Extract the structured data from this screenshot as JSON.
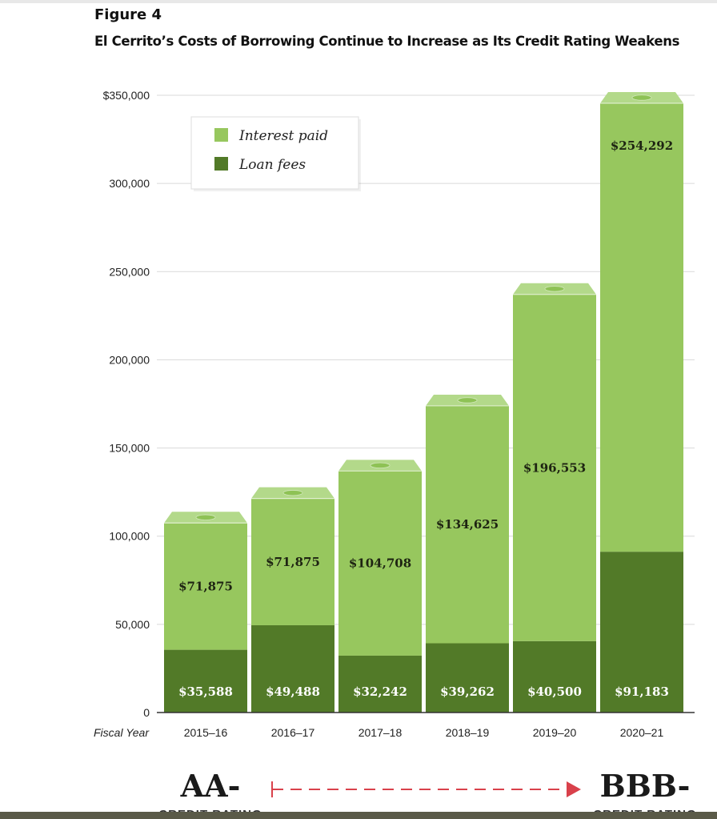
{
  "figure_label": "Figure 4",
  "title": "El Cerrito’s Costs of Borrowing Continue to Increase as Its Credit Rating Weakens",
  "colors": {
    "interest": "#97c75e",
    "interest_top": "#b3d98a",
    "interest_ellipse": "#8ec255",
    "fees": "#527a28",
    "grid": "#d9d9d9",
    "axis": "#333333",
    "arrow": "#d9414b",
    "legend_border": "#dddddd"
  },
  "chart_data": {
    "type": "bar",
    "stacked": true,
    "title": "El Cerrito’s Costs of Borrowing Continue to Increase as Its Credit Rating Weakens",
    "xlabel": "Fiscal Year",
    "ylabel": "",
    "ylim": [
      0,
      350000
    ],
    "grid": true,
    "yticks": [
      {
        "value": 0,
        "label": "0"
      },
      {
        "value": 50000,
        "label": "50,000"
      },
      {
        "value": 100000,
        "label": "100,000"
      },
      {
        "value": 150000,
        "label": "150,000"
      },
      {
        "value": 200000,
        "label": "200,000"
      },
      {
        "value": 250000,
        "label": "250,000"
      },
      {
        "value": 300000,
        "label": "300,000"
      },
      {
        "value": 350000,
        "label": "$350,000"
      }
    ],
    "categories": [
      "2015–16",
      "2016–17",
      "2017–18",
      "2018–19",
      "2019–20",
      "2020–21"
    ],
    "series": [
      {
        "name": "Loan fees",
        "values": [
          35588,
          49488,
          32242,
          39262,
          40500,
          91183
        ],
        "labels": [
          "$35,588",
          "$49,488",
          "$32,242",
          "$39,262",
          "$40,500",
          "$91,183"
        ]
      },
      {
        "name": "Interest paid",
        "values": [
          71875,
          71875,
          104708,
          134625,
          196553,
          254292
        ],
        "labels": [
          "$71,875",
          "$71,875",
          "$104,708",
          "$134,625",
          "$196,553",
          "$254,292"
        ]
      }
    ],
    "legend": {
      "placement": "top-left",
      "items": [
        {
          "label": "Interest paid",
          "series": "Interest paid"
        },
        {
          "label": "Loan fees",
          "series": "Loan fees"
        }
      ]
    },
    "annotations": {
      "start_rating": "AA-",
      "start_caption": "CREDIT RATING",
      "end_rating": "BBB-",
      "end_caption": "CREDIT RATING"
    }
  }
}
